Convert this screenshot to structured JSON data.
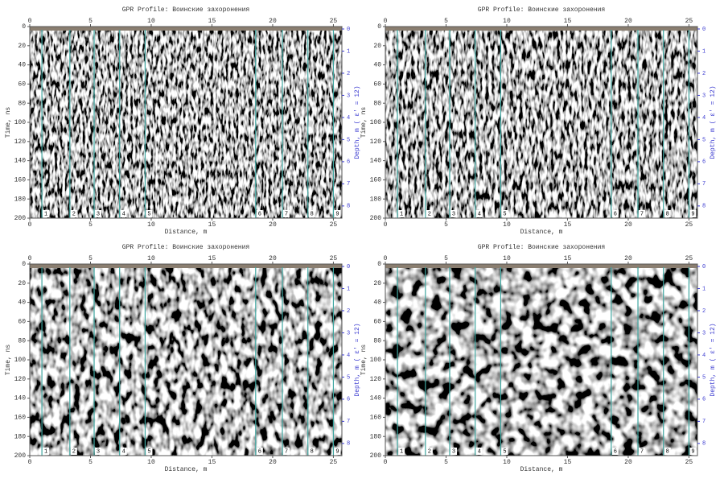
{
  "chart_data": [
    {
      "type": "radargram",
      "title": "GPR Profile: Воинские захоронения",
      "xlabel": "Distance, m",
      "ylabel": "Time, ns",
      "y2label": "Depth, m ( ε' = 12)",
      "xlim": [
        0,
        25.7
      ],
      "xticks": [
        0,
        5,
        10,
        15,
        20,
        25
      ],
      "ylim": [
        200,
        0
      ],
      "yticks": [
        0,
        20,
        40,
        60,
        80,
        100,
        120,
        140,
        160,
        180,
        200
      ],
      "y2lim": [
        8.66,
        0
      ],
      "y2ticks": [
        0,
        1,
        2,
        3,
        4,
        5,
        6,
        7,
        8
      ],
      "y2color": "#3b3bd0",
      "marker_color": "#3fa6a0",
      "markers": [
        {
          "label": "1",
          "x": 1.0
        },
        {
          "label": "2",
          "x": 3.3
        },
        {
          "label": "3",
          "x": 5.3
        },
        {
          "label": "4",
          "x": 7.4
        },
        {
          "label": "5",
          "x": 9.5
        },
        {
          "label": "6",
          "x": 18.6
        },
        {
          "label": "7",
          "x": 20.8
        },
        {
          "label": "8",
          "x": 22.9
        },
        {
          "label": "9",
          "x": 25.0
        }
      ]
    },
    {
      "type": "radargram",
      "title": "GPR Profile: Воинские захоронения",
      "xlabel": "Distance, m",
      "ylabel": "Time, ns",
      "y2label": "Depth, m ( ε' = 12)",
      "xlim": [
        0,
        25.7
      ],
      "xticks": [
        0,
        5,
        10,
        15,
        20,
        25
      ],
      "ylim": [
        200,
        0
      ],
      "yticks": [
        0,
        20,
        40,
        60,
        80,
        100,
        120,
        140,
        160,
        180,
        200
      ],
      "y2lim": [
        8.66,
        0
      ],
      "y2ticks": [
        0,
        1,
        2,
        3,
        4,
        5,
        6,
        7,
        8
      ],
      "y2color": "#3b3bd0",
      "marker_color": "#3fa6a0",
      "markers": [
        {
          "label": "1",
          "x": 1.0
        },
        {
          "label": "2",
          "x": 3.3
        },
        {
          "label": "3",
          "x": 5.3
        },
        {
          "label": "4",
          "x": 7.4
        },
        {
          "label": "5",
          "x": 9.5
        },
        {
          "label": "6",
          "x": 18.6
        },
        {
          "label": "7",
          "x": 20.8
        },
        {
          "label": "8",
          "x": 22.9
        },
        {
          "label": "9",
          "x": 25.0
        }
      ]
    },
    {
      "type": "radargram",
      "title": "GPR Profile: Воинские захоронения",
      "xlabel": "Distance, m",
      "ylabel": "Time, ns",
      "y2label": "Depth, m ( ε' = 12)",
      "xlim": [
        0,
        25.7
      ],
      "xticks": [
        0,
        5,
        10,
        15,
        20,
        25
      ],
      "ylim": [
        200,
        0
      ],
      "yticks": [
        0,
        20,
        40,
        60,
        80,
        100,
        120,
        140,
        160,
        180,
        200
      ],
      "y2lim": [
        8.66,
        0
      ],
      "y2ticks": [
        0,
        1,
        2,
        3,
        4,
        5,
        6,
        7,
        8
      ],
      "y2color": "#3b3bd0",
      "marker_color": "#3fa6a0",
      "markers": [
        {
          "label": "1",
          "x": 1.0
        },
        {
          "label": "2",
          "x": 3.3
        },
        {
          "label": "3",
          "x": 5.3
        },
        {
          "label": "4",
          "x": 7.4
        },
        {
          "label": "5",
          "x": 9.5
        },
        {
          "label": "6",
          "x": 18.6
        },
        {
          "label": "7",
          "x": 20.8
        },
        {
          "label": "8",
          "x": 22.9
        },
        {
          "label": "9",
          "x": 25.0
        }
      ]
    },
    {
      "type": "radargram",
      "title": "GPR Profile: Воинские захоронения",
      "xlabel": "Distance, m",
      "ylabel": "Time, ns",
      "y2label": "Depth, m ( ε' = 12)",
      "xlim": [
        0,
        25.7
      ],
      "xticks": [
        0,
        5,
        10,
        15,
        20,
        25
      ],
      "ylim": [
        200,
        0
      ],
      "yticks": [
        0,
        20,
        40,
        60,
        80,
        100,
        120,
        140,
        160,
        180,
        200
      ],
      "y2lim": [
        8.66,
        0
      ],
      "y2ticks": [
        0,
        1,
        2,
        3,
        4,
        5,
        6,
        7,
        8
      ],
      "y2color": "#3b3bd0",
      "marker_color": "#3fa6a0",
      "markers": [
        {
          "label": "1",
          "x": 1.0
        },
        {
          "label": "2",
          "x": 3.3
        },
        {
          "label": "3",
          "x": 5.3
        },
        {
          "label": "4",
          "x": 7.4
        },
        {
          "label": "5",
          "x": 9.5
        },
        {
          "label": "6",
          "x": 18.6
        },
        {
          "label": "7",
          "x": 20.8
        },
        {
          "label": "8",
          "x": 22.9
        },
        {
          "label": "9",
          "x": 25.0
        }
      ]
    }
  ]
}
